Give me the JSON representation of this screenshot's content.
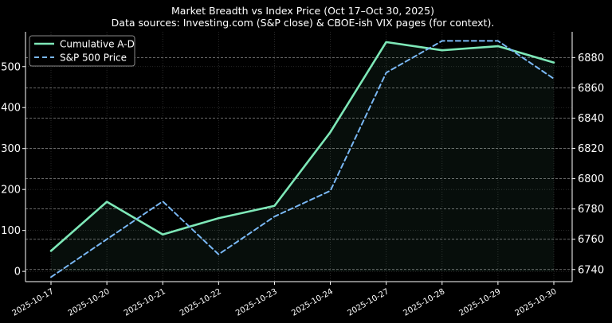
{
  "chart_data": {
    "type": "line",
    "title": "Market Breadth vs Index Price (Oct 17–Oct 30, 2025)",
    "subtitle": "Data sources: Investing.com (S&P close) & CBOE-ish VIX pages (for context).",
    "categories": [
      "2025-10-17",
      "2025-10-20",
      "2025-10-21",
      "2025-10-22",
      "2025-10-23",
      "2025-10-24",
      "2025-10-27",
      "2025-10-28",
      "2025-10-29",
      "2025-10-30"
    ],
    "series": [
      {
        "name": "Cumulative A-D",
        "axis": "left",
        "values": [
          50,
          170,
          90,
          130,
          160,
          340,
          560,
          540,
          550,
          510
        ],
        "color": "#7ee8b8",
        "style": "solid",
        "fill_area": true
      },
      {
        "name": "S&P 500 Price",
        "axis": "right",
        "values": [
          6735,
          6760,
          6785,
          6750,
          6775,
          6792,
          6870,
          6891,
          6891,
          6866
        ],
        "color": "#7ab8f5",
        "style": "dashed"
      }
    ],
    "y_left": {
      "ticks": [
        0,
        100,
        200,
        300,
        400,
        500
      ],
      "range": [
        -25,
        585
      ]
    },
    "y_right": {
      "ticks": [
        6740,
        6760,
        6780,
        6800,
        6820,
        6840,
        6860,
        6880
      ],
      "range": [
        6732,
        6897
      ]
    },
    "grid": true,
    "legend_position": "top-left"
  }
}
